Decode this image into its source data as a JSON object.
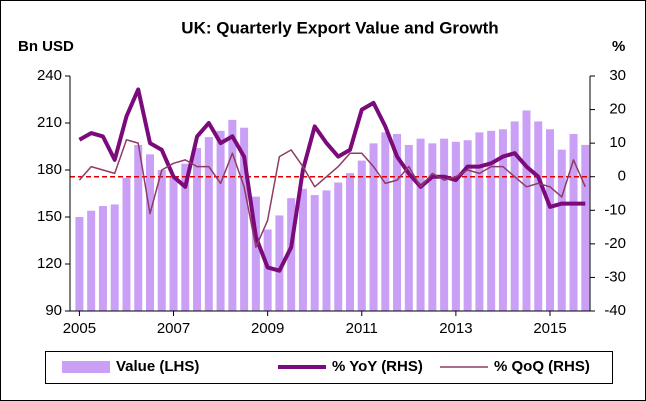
{
  "chart_data": {
    "type": "bar_line",
    "title": "UK: Quarterly Export Value and Growth",
    "y_label": "Bn USD",
    "y2_label": "%",
    "x": [
      2005,
      2005.25,
      2005.5,
      2005.75,
      2006,
      2006.25,
      2006.5,
      2006.75,
      2007,
      2007.25,
      2007.5,
      2007.75,
      2008,
      2008.25,
      2008.5,
      2008.75,
      2009,
      2009.25,
      2009.5,
      2009.75,
      2010,
      2010.25,
      2010.5,
      2010.75,
      2011,
      2011.25,
      2011.5,
      2011.75,
      2012,
      2012.25,
      2012.5,
      2012.75,
      2013,
      2013.25,
      2013.5,
      2013.75,
      2014,
      2014.25,
      2014.5,
      2014.75,
      2015,
      2015.25,
      2015.5,
      2015.75
    ],
    "series": [
      {
        "name": "Value (LHS)",
        "kind": "bar",
        "axis": "y",
        "color": "#c9a0f5",
        "values": [
          150,
          154,
          157,
          158,
          175,
          196,
          190,
          180,
          176,
          184,
          194,
          201,
          205,
          212,
          207,
          163,
          142,
          151,
          162,
          168,
          164,
          167,
          172,
          178,
          186,
          197,
          204,
          203,
          196,
          200,
          197,
          200,
          198,
          199,
          204,
          205,
          206,
          211,
          218,
          211,
          206,
          193,
          203,
          196
        ]
      },
      {
        "name": "% YoY (RHS)",
        "kind": "line",
        "axis": "y2",
        "color": "#7b0a7b",
        "width": 4,
        "values": [
          11,
          13,
          12,
          5,
          18,
          26,
          10,
          8,
          0,
          -3,
          12,
          16,
          10,
          12,
          6,
          -18,
          -27,
          -28,
          -21,
          2,
          15,
          10,
          6,
          8,
          20,
          22,
          15,
          6,
          1,
          -3,
          0,
          0,
          -1,
          3,
          3,
          4,
          6,
          7,
          3,
          0,
          -9,
          -8,
          -8,
          -8
        ]
      },
      {
        "name": "% QoQ (RHS)",
        "kind": "line",
        "axis": "y2",
        "color": "#8e3b66",
        "width": 1.5,
        "values": [
          -1,
          3,
          2,
          1,
          11,
          10,
          -11,
          2,
          4,
          5,
          3,
          3,
          -2,
          7,
          -3,
          -21,
          -13,
          6,
          8,
          3,
          -3,
          0,
          3,
          7,
          7,
          3,
          -2,
          -1,
          3,
          -3,
          1,
          -1,
          0,
          2,
          1,
          3,
          3,
          0,
          -3,
          -2,
          -3,
          -6,
          5,
          -3
        ]
      }
    ],
    "xlim": [
      2004.8,
      2015.85
    ],
    "xticks": [
      2005,
      2007,
      2009,
      2011,
      2013,
      2015
    ],
    "ylim": [
      90,
      240
    ],
    "yticks": [
      90,
      120,
      150,
      180,
      210,
      240
    ],
    "y2lim": [
      -40,
      30
    ],
    "y2ticks": [
      -40,
      -30,
      -20,
      -10,
      0,
      10,
      20,
      30
    ],
    "reference_line": {
      "value": 0,
      "axis": "y2",
      "color": "#e00000"
    },
    "legend": "bottom"
  }
}
